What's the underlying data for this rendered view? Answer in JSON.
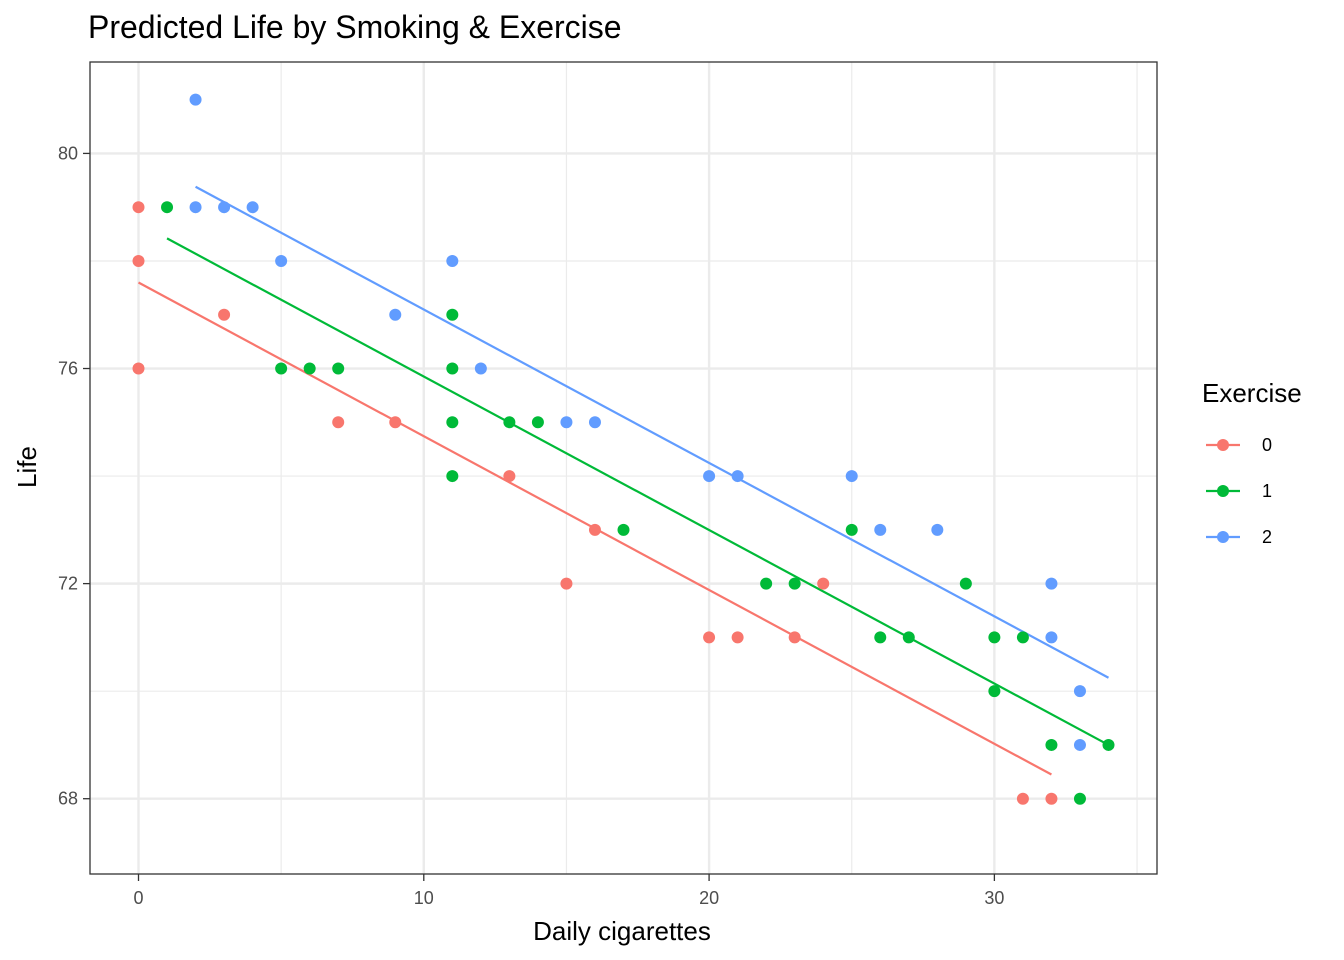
{
  "chart_data": {
    "type": "scatter",
    "title": "Predicted Life by Smoking & Exercise",
    "xlabel": "Daily cigarettes",
    "ylabel": "Life",
    "xlim": [
      -1.7,
      35.7
    ],
    "ylim": [
      66.6,
      81.7
    ],
    "x_ticks": [
      0,
      10,
      20,
      30
    ],
    "x_tick_labels": [
      "0",
      "10",
      "20",
      "30"
    ],
    "x_minor_ticks": [
      5,
      15,
      25,
      35
    ],
    "y_ticks": [
      68,
      72,
      76,
      80
    ],
    "y_tick_labels": [
      "68",
      "72",
      "76",
      "80"
    ],
    "y_minor_ticks": [
      70,
      74,
      78
    ],
    "grid": true,
    "legend_title": "Exercise",
    "legend_position": "right",
    "series": [
      {
        "name": "0",
        "color": "#F8766D",
        "points": [
          [
            0,
            79
          ],
          [
            0,
            78
          ],
          [
            0,
            76
          ],
          [
            3,
            77
          ],
          [
            7,
            75
          ],
          [
            9,
            75
          ],
          [
            13,
            74
          ],
          [
            15,
            72
          ],
          [
            16,
            73
          ],
          [
            20,
            71
          ],
          [
            21,
            71
          ],
          [
            23,
            71
          ],
          [
            24,
            72
          ],
          [
            31,
            68
          ],
          [
            32,
            68
          ]
        ],
        "fit": [
          [
            0,
            77.6
          ],
          [
            32,
            68.45
          ]
        ]
      },
      {
        "name": "1",
        "color": "#00BA38",
        "points": [
          [
            1,
            79
          ],
          [
            5,
            76
          ],
          [
            6,
            76
          ],
          [
            7,
            76
          ],
          [
            11,
            77
          ],
          [
            11,
            76
          ],
          [
            11,
            75
          ],
          [
            11,
            74
          ],
          [
            13,
            75
          ],
          [
            14,
            75
          ],
          [
            17,
            73
          ],
          [
            22,
            72
          ],
          [
            23,
            72
          ],
          [
            25,
            73
          ],
          [
            26,
            71
          ],
          [
            27,
            71
          ],
          [
            29,
            72
          ],
          [
            30,
            71
          ],
          [
            30,
            70
          ],
          [
            31,
            71
          ],
          [
            32,
            69
          ],
          [
            33,
            68
          ],
          [
            34,
            69
          ]
        ],
        "fit": [
          [
            1,
            78.42
          ],
          [
            34,
            69.0
          ]
        ]
      },
      {
        "name": "2",
        "color": "#619CFF",
        "points": [
          [
            2,
            81
          ],
          [
            2,
            79
          ],
          [
            3,
            79
          ],
          [
            4,
            79
          ],
          [
            5,
            78
          ],
          [
            9,
            77
          ],
          [
            11,
            78
          ],
          [
            12,
            76
          ],
          [
            15,
            75
          ],
          [
            16,
            75
          ],
          [
            20,
            74
          ],
          [
            21,
            74
          ],
          [
            25,
            74
          ],
          [
            26,
            73
          ],
          [
            28,
            73
          ],
          [
            32,
            72
          ],
          [
            32,
            71
          ],
          [
            33,
            70
          ],
          [
            33,
            69
          ]
        ],
        "fit": [
          [
            2,
            79.38
          ],
          [
            34,
            70.25
          ]
        ]
      }
    ]
  }
}
